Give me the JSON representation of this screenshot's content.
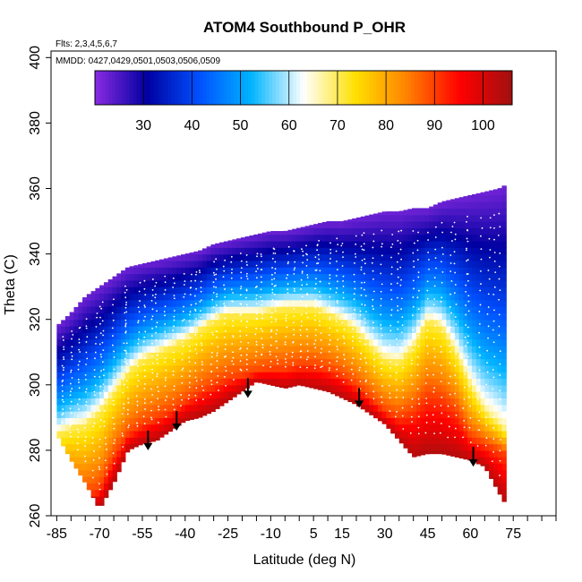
{
  "chart_data": {
    "type": "heatmap",
    "title": "ATOM4 Southbound P_OHR",
    "flights_note": "Flts: 2,3,4,5,6,7",
    "dates_note": "MMDD: 0427,0429,0501,0503,0506,0509",
    "xlabel": "Latitude (deg N)",
    "ylabel": "Theta (C)",
    "xlim": [
      -87,
      90
    ],
    "ylim": [
      260,
      402
    ],
    "x_ticks": [
      -85,
      -70,
      -55,
      -40,
      -25,
      -10,
      5,
      15,
      30,
      45,
      60,
      75
    ],
    "y_ticks": [
      260,
      280,
      300,
      320,
      340,
      360,
      380,
      400
    ],
    "colorbar": {
      "range": [
        20,
        106
      ],
      "ticks": [
        30,
        40,
        50,
        60,
        70,
        80,
        90,
        100
      ],
      "colors": [
        "#8a2be2",
        "#0000a0",
        "#0050ff",
        "#00b4ff",
        "#ffffff",
        "#ffe000",
        "#ff8000",
        "#ff0000",
        "#a01010"
      ]
    },
    "field": {
      "latitudes": [
        -85,
        -80,
        -75,
        -70,
        -65,
        -60,
        -55,
        -50,
        -45,
        -40,
        -35,
        -30,
        -25,
        -20,
        -15,
        -10,
        -5,
        0,
        5,
        10,
        15,
        20,
        25,
        30,
        35,
        40,
        45,
        50,
        55,
        60,
        65,
        70,
        72
      ],
      "theta_top": [
        318,
        322,
        327,
        330,
        333,
        336,
        337,
        338,
        339,
        340,
        341,
        343,
        344,
        345,
        346,
        347,
        347,
        348,
        349,
        350,
        350,
        351,
        352,
        353,
        353,
        354,
        354,
        356,
        357,
        358,
        359,
        360,
        361
      ],
      "theta_bottom": [
        285,
        277,
        270,
        262,
        270,
        280,
        282,
        283,
        286,
        289,
        290,
        292,
        295,
        298,
        301,
        300,
        299,
        300,
        299,
        298,
        296,
        294,
        291,
        288,
        283,
        278,
        279,
        279,
        278,
        277,
        275,
        267,
        264
      ],
      "theta_ohr70": [
        285,
        287,
        288,
        292,
        298,
        304,
        308,
        310,
        312,
        314,
        317,
        320,
        322,
        322,
        322,
        323,
        324,
        324,
        324,
        322,
        320,
        317,
        312,
        308,
        307,
        312,
        320,
        318,
        310,
        300,
        292,
        288,
        286
      ],
      "theta_ohr90": [
        270,
        268,
        266,
        268,
        278,
        285,
        288,
        290,
        292,
        295,
        298,
        300,
        302,
        303,
        304,
        305,
        305,
        306,
        306,
        305,
        303,
        300,
        296,
        292,
        290,
        292,
        297,
        296,
        292,
        284,
        282,
        280,
        279
      ]
    },
    "arrows": [
      {
        "lat": -53,
        "theta": 280
      },
      {
        "lat": -43,
        "theta": 286
      },
      {
        "lat": -18,
        "theta": 296
      },
      {
        "lat": 21,
        "theta": 293
      },
      {
        "lat": 61,
        "theta": 275
      }
    ]
  }
}
